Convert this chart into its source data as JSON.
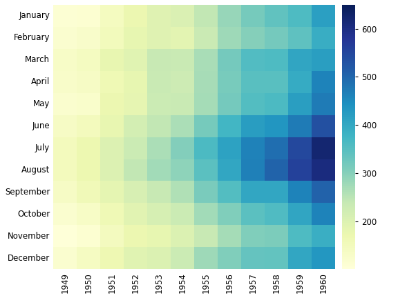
{
  "data": [
    [
      112,
      118,
      132,
      129,
      121,
      135,
      148,
      148,
      136,
      119,
      104,
      118
    ],
    [
      115,
      126,
      141,
      135,
      125,
      149,
      170,
      170,
      158,
      133,
      114,
      140
    ],
    [
      145,
      150,
      178,
      163,
      172,
      178,
      199,
      199,
      184,
      162,
      146,
      166
    ],
    [
      171,
      180,
      193,
      181,
      183,
      218,
      230,
      242,
      209,
      191,
      172,
      194
    ],
    [
      196,
      196,
      236,
      235,
      229,
      243,
      264,
      272,
      237,
      211,
      180,
      201
    ],
    [
      204,
      188,
      235,
      227,
      234,
      264,
      302,
      293,
      259,
      229,
      203,
      229
    ],
    [
      242,
      233,
      267,
      269,
      270,
      315,
      364,
      347,
      312,
      274,
      237,
      278
    ],
    [
      284,
      277,
      317,
      313,
      318,
      374,
      413,
      405,
      355,
      306,
      271,
      306
    ],
    [
      315,
      301,
      356,
      348,
      355,
      422,
      465,
      467,
      404,
      347,
      305,
      336
    ],
    [
      340,
      318,
      362,
      348,
      363,
      435,
      491,
      505,
      404,
      359,
      310,
      337
    ],
    [
      360,
      342,
      406,
      396,
      420,
      472,
      548,
      559,
      463,
      407,
      362,
      405
    ],
    [
      417,
      391,
      419,
      461,
      472,
      535,
      622,
      606,
      508,
      461,
      390,
      432
    ]
  ],
  "months": [
    "January",
    "February",
    "March",
    "April",
    "May",
    "June",
    "July",
    "August",
    "September",
    "October",
    "November",
    "December"
  ],
  "years": [
    "1949",
    "1950",
    "1951",
    "1952",
    "1953",
    "1954",
    "1955",
    "1956",
    "1957",
    "1958",
    "1959",
    "1960"
  ],
  "cmap": "YlGnBu",
  "vmin": 100,
  "vmax": 650,
  "colorbar_ticks": [
    200,
    300,
    400,
    500,
    600
  ],
  "figsize": [
    5.76,
    4.32
  ],
  "dpi": 100,
  "background_color": "#ffffff"
}
